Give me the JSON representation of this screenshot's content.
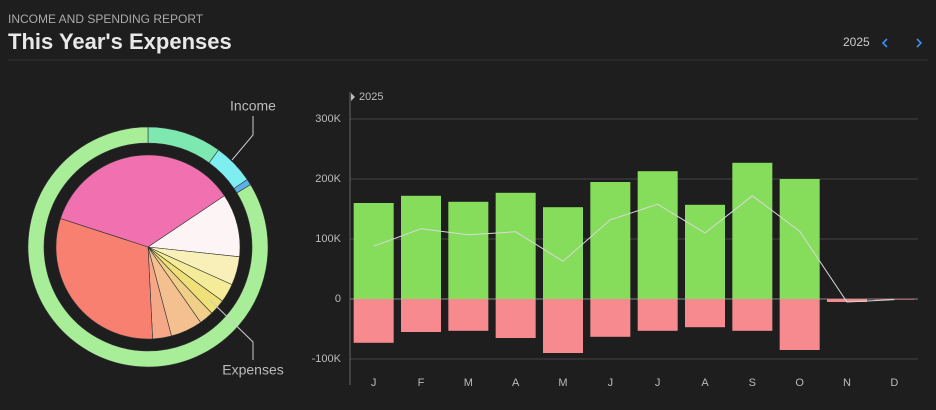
{
  "header": {
    "kicker": "INCOME AND SPENDING REPORT",
    "title": "This Year's Expenses",
    "year": "2025"
  },
  "chart_data": [
    {
      "type": "donut",
      "label": "Income",
      "start_angle": 0,
      "values": [
        10,
        5.5,
        0.8,
        83.7
      ],
      "colors": [
        "#7de8b0",
        "#7eeef0",
        "#5ab0e8",
        "#a8ee98"
      ]
    },
    {
      "type": "pie",
      "label": "Expenses",
      "start_angle": -72,
      "values": [
        35.6,
        11.1,
        5,
        3.3,
        2.8,
        2.5,
        5.6,
        3.3,
        30.8
      ],
      "colors": [
        "#f070b0",
        "#fdf5f5",
        "#f8f0b8",
        "#f4ec98",
        "#f0e078",
        "#f0d088",
        "#f4c090",
        "#f4a888",
        "#f88070"
      ]
    },
    {
      "type": "bar",
      "annotation": "2025",
      "categories": [
        "J",
        "F",
        "M",
        "A",
        "M",
        "J",
        "J",
        "A",
        "S",
        "O",
        "N",
        "D"
      ],
      "series": [
        {
          "color": "#86dd5c",
          "values": [
            160000,
            172000,
            162000,
            177000,
            153000,
            195000,
            213000,
            157000,
            227000,
            200000,
            0,
            0
          ]
        },
        {
          "color": "#f78a8e",
          "values": [
            -73000,
            -55000,
            -53000,
            -65000,
            -90000,
            -63000,
            -53000,
            -47000,
            -53000,
            -85000,
            -5000,
            -1000
          ]
        },
        {
          "type": "line",
          "color": "#d8d8d8",
          "values": [
            88000,
            117000,
            107000,
            112000,
            63000,
            132000,
            158000,
            110000,
            172000,
            113000,
            -5000,
            -1000
          ]
        }
      ],
      "ylim": [
        -140000,
        340000
      ],
      "yticks": [
        {
          "value": -100000,
          "label": "-100K"
        },
        0,
        {
          "value": 100000,
          "label": "100K"
        },
        {
          "value": 200000,
          "label": "200K"
        },
        {
          "value": 300000,
          "label": "300K"
        }
      ],
      "grid": true
    }
  ]
}
